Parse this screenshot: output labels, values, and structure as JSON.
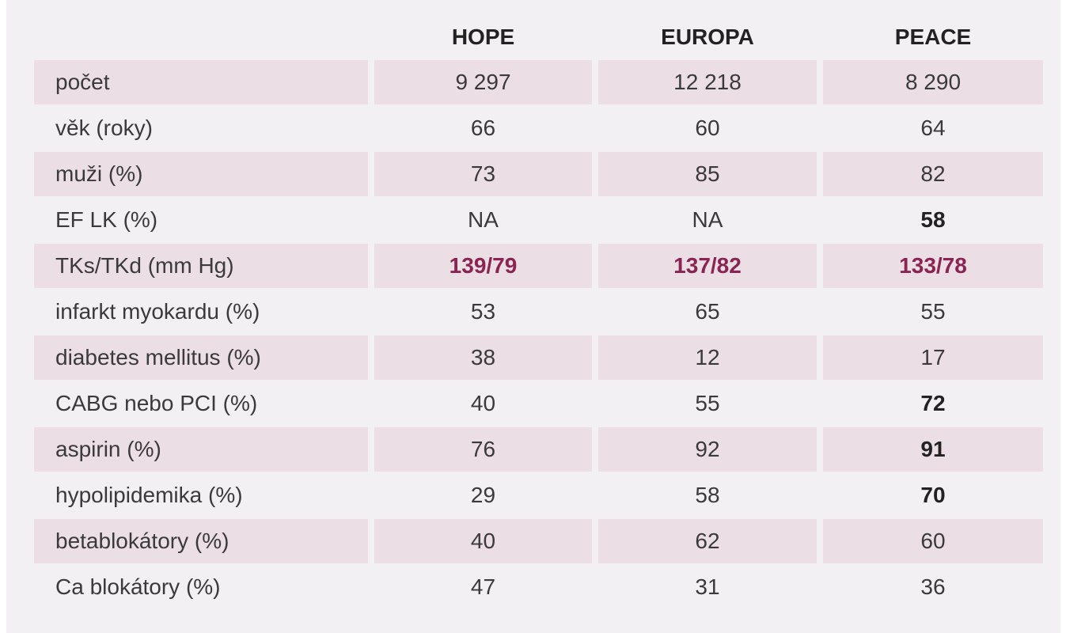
{
  "table": {
    "header": [
      "HOPE",
      "EUROPA",
      "PEACE"
    ],
    "rows": [
      [
        "počet",
        "9 297",
        "12 218",
        "8 290"
      ],
      [
        "věk (roky)",
        66,
        60,
        64
      ],
      [
        "muži (%)",
        73,
        85,
        82
      ],
      [
        "EF LK (%)",
        "NA",
        "NA",
        58
      ],
      [
        "TKs/TKd (mm Hg)",
        "139/79",
        "137/82",
        "133/78"
      ],
      [
        "infarkt myokardu (%)",
        53,
        65,
        55
      ],
      [
        "diabetes mellitus (%)",
        38,
        12,
        17
      ],
      [
        "CABG nebo PCI (%)",
        40,
        55,
        72
      ],
      [
        "aspirin (%)",
        76,
        92,
        91
      ],
      [
        "hypolipidemika (%)",
        29,
        58,
        70
      ],
      [
        "betablokátory (%)",
        40,
        62,
        60
      ],
      [
        "Ca blokátory (%)",
        47,
        31,
        36
      ]
    ]
  }
}
